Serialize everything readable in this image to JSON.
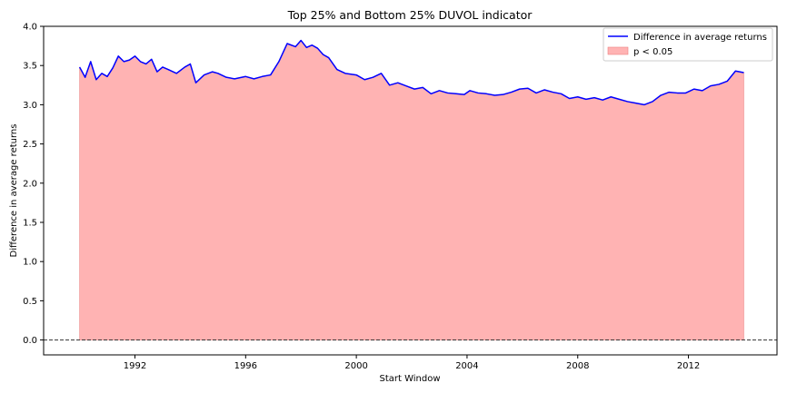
{
  "chart_data": {
    "type": "area",
    "title": "Top 25% and Bottom 25% DUVOL indicator",
    "xlabel": "Start Window",
    "ylabel": "Difference in average returns",
    "xlim": [
      1988.7,
      2015.2
    ],
    "ylim": [
      -0.19,
      4.0
    ],
    "x_ticks": [
      1992,
      1996,
      2000,
      2004,
      2008,
      2012
    ],
    "x_tick_labels": [
      "1992",
      "1996",
      "2000",
      "2004",
      "2008",
      "2012"
    ],
    "y_ticks": [
      0.0,
      0.5,
      1.0,
      1.5,
      2.0,
      2.5,
      3.0,
      3.5,
      4.0
    ],
    "y_tick_labels": [
      "0.0",
      "0.5",
      "1.0",
      "1.5",
      "2.0",
      "2.5",
      "3.0",
      "3.5",
      "4.0"
    ],
    "reference_line": {
      "y": 0.0,
      "style": "dashed",
      "color": "#333333"
    },
    "legend": {
      "placement": "top-right",
      "entries": [
        {
          "label": "Difference in average returns",
          "kind": "line",
          "color": "#0000ff"
        },
        {
          "label": "p < 0.05",
          "kind": "patch",
          "color": "#ffb3b3"
        }
      ]
    },
    "series": [
      {
        "name": "Difference in average returns",
        "color": "#0000ff",
        "fill_color": "#ffb3b3",
        "x": [
          1990.0,
          1990.2,
          1990.4,
          1990.6,
          1990.8,
          1991.0,
          1991.2,
          1991.4,
          1991.6,
          1991.8,
          1992.0,
          1992.2,
          1992.4,
          1992.6,
          1992.8,
          1993.0,
          1993.2,
          1993.5,
          1993.8,
          1994.0,
          1994.2,
          1994.5,
          1994.8,
          1995.0,
          1995.3,
          1995.6,
          1996.0,
          1996.3,
          1996.6,
          1996.9,
          1997.2,
          1997.5,
          1997.8,
          1998.0,
          1998.2,
          1998.4,
          1998.6,
          1998.8,
          1999.0,
          1999.3,
          1999.6,
          2000.0,
          2000.3,
          2000.6,
          2000.9,
          2001.2,
          2001.5,
          2001.8,
          2002.1,
          2002.4,
          2002.7,
          2003.0,
          2003.3,
          2003.6,
          2003.9,
          2004.1,
          2004.4,
          2004.7,
          2005.0,
          2005.3,
          2005.6,
          2005.9,
          2006.2,
          2006.5,
          2006.8,
          2007.1,
          2007.4,
          2007.7,
          2008.0,
          2008.3,
          2008.6,
          2008.9,
          2009.2,
          2009.5,
          2009.8,
          2010.1,
          2010.4,
          2010.7,
          2011.0,
          2011.3,
          2011.6,
          2011.9,
          2012.2,
          2012.5,
          2012.8,
          2013.1,
          2013.4,
          2013.7,
          2014.0
        ],
        "values": [
          3.48,
          3.35,
          3.55,
          3.32,
          3.4,
          3.36,
          3.47,
          3.62,
          3.55,
          3.57,
          3.62,
          3.55,
          3.52,
          3.58,
          3.42,
          3.48,
          3.45,
          3.4,
          3.48,
          3.52,
          3.28,
          3.38,
          3.42,
          3.4,
          3.35,
          3.33,
          3.36,
          3.33,
          3.36,
          3.38,
          3.55,
          3.78,
          3.74,
          3.82,
          3.73,
          3.76,
          3.72,
          3.64,
          3.6,
          3.45,
          3.4,
          3.38,
          3.32,
          3.35,
          3.4,
          3.25,
          3.28,
          3.24,
          3.2,
          3.22,
          3.14,
          3.18,
          3.15,
          3.14,
          3.13,
          3.18,
          3.15,
          3.14,
          3.12,
          3.13,
          3.16,
          3.2,
          3.21,
          3.15,
          3.19,
          3.16,
          3.14,
          3.08,
          3.1,
          3.07,
          3.09,
          3.06,
          3.1,
          3.07,
          3.04,
          3.02,
          3.0,
          3.04,
          3.12,
          3.16,
          3.15,
          3.15,
          3.2,
          3.18,
          3.24,
          3.26,
          3.3,
          3.43,
          3.41
        ]
      }
    ]
  }
}
